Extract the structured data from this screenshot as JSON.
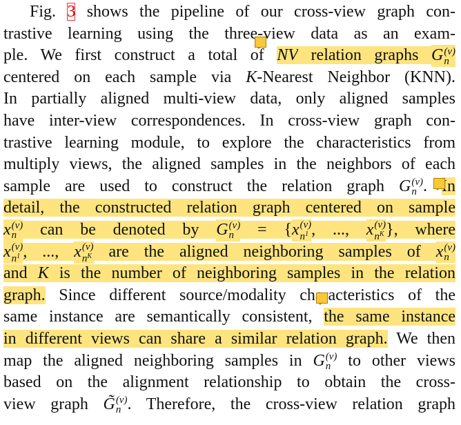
{
  "paragraph": {
    "lines": [
      [
        "Fig. ",
        "3",
        " shows the pipeline of our cross-view graph con-"
      ],
      [
        "trastive learning using the three-view data as an exam-"
      ],
      [
        "ple. We first construct a total of ",
        {
          "i": "NV"
        },
        " relation graphs ",
        {
          "b": "G",
          "sup": "(v)",
          "sub": "n"
        }
      ],
      [
        "centered on each sample via ",
        {
          "i": "K"
        },
        "-Nearest Neighbor (KNN)."
      ],
      [
        "In partially aligned multi-view data, only aligned samples"
      ],
      [
        "have inter-view correspondences. In cross-view graph con-"
      ],
      [
        "trastive learning module, to explore the characteristics from"
      ],
      [
        "multiply views, the aligned samples in the neighbors of each"
      ],
      [
        "sample are used to construct the relation graph ",
        {
          "b": "G",
          "sup": "(v)",
          "sub": "n"
        },
        ". ",
        "In"
      ],
      [
        "detail, the constructed relation graph centered on sample"
      ],
      [
        {
          "b": "x",
          "sup": "(v)",
          "sub": "n"
        },
        " can be denoted by ",
        {
          "b": "G",
          "sup": "(v)",
          "sub": "n"
        },
        " = {",
        {
          "b": "x",
          "sup": "(v)",
          "sub": "n",
          "subsup": "1"
        },
        ", ..., ",
        {
          "b": "x",
          "sup": "(v)",
          "sub": "n",
          "subsup": "K"
        },
        "}, where"
      ],
      [
        {
          "b": "x",
          "sup": "(v)",
          "sub": "n",
          "subsup": "1"
        },
        ", ..., ",
        {
          "b": "x",
          "sup": "(v)",
          "sub": "n",
          "subsup": "K"
        },
        " are the aligned neighboring samples of ",
        {
          "b": "x",
          "sup": "(v)",
          "sub": "n"
        }
      ],
      [
        "and ",
        {
          "i": "K"
        },
        " is the number of neighboring samples in the relation"
      ],
      [
        "graph.",
        " Since different source/modality characteristics of the"
      ],
      [
        "same instance are semantically consistent, ",
        "the same instance"
      ],
      [
        "in different views can share a similar relation graph.",
        " We then"
      ],
      [
        "map the aligned neighboring samples in ",
        {
          "b": "G",
          "sup": "(v)",
          "sub": "n"
        },
        " to other views"
      ],
      [
        "based on the alignment relationship to obtain the cross-"
      ],
      [
        "view graph ",
        {
          "b": "G̃",
          "sup": "(v)",
          "sub": "n"
        },
        ". Therefore, the cross-view relation graph"
      ]
    ]
  }
}
